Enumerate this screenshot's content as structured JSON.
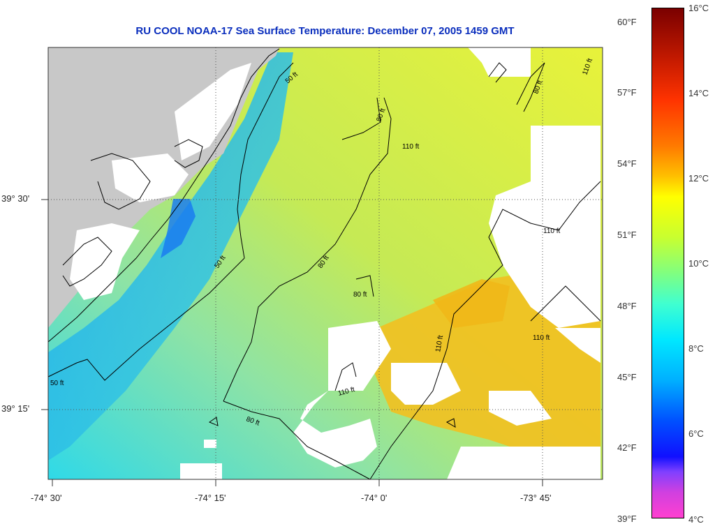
{
  "title": "RU COOL  NOAA-17  Sea Surface Temperature:  December 07, 2005 1459 GMT",
  "axes": {
    "lon_labels": [
      "-74° 30'",
      "-74° 15'",
      "-74° 0'",
      "-73° 45'"
    ],
    "lat_labels": [
      "39° 30'",
      "39° 15'"
    ]
  },
  "contours": {
    "labels": [
      "50 ft",
      "50 ft",
      "50 ft",
      "80 ft",
      "80 ft",
      "80 ft",
      "80 ft",
      "80 ft",
      "110 ft",
      "110 ft",
      "110 ft",
      "110 ft",
      "110 ft",
      "110 ft"
    ]
  },
  "colorbar": {
    "fahrenheit_labels": [
      "60°F",
      "57°F",
      "54°F",
      "51°F",
      "48°F",
      "45°F",
      "42°F",
      "39°F"
    ],
    "celsius_labels": [
      "16°C",
      "14°C",
      "12°C",
      "10°C",
      "8°C",
      "6°C",
      "4°C"
    ]
  },
  "colors": {
    "title": "#0a2ebd",
    "land": "#c8c8c8",
    "no_data": "#ffffff"
  }
}
